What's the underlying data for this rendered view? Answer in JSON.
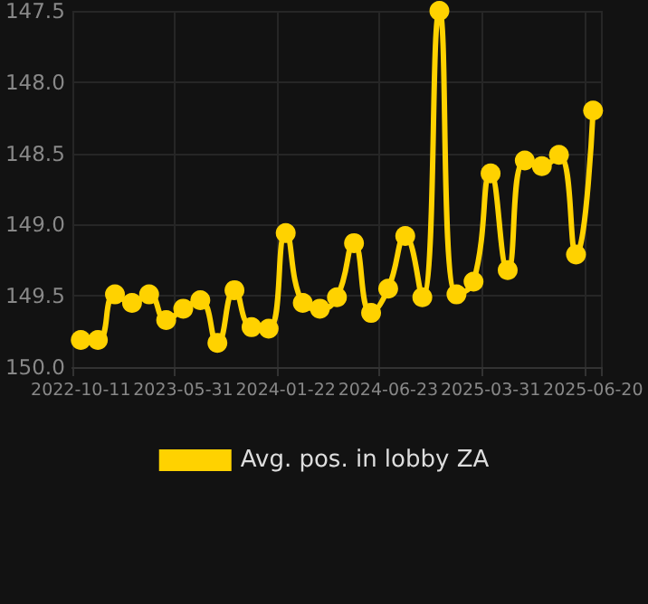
{
  "chart_data": {
    "type": "line",
    "categories": [
      "2022-10-11",
      null,
      null,
      null,
      null,
      null,
      "2023-05-31",
      null,
      null,
      null,
      null,
      null,
      "2024-01-22",
      null,
      null,
      null,
      null,
      null,
      "2024-06-23",
      null,
      null,
      null,
      null,
      null,
      "2025-03-31",
      null,
      null,
      null,
      null,
      null,
      "2025-06-20"
    ],
    "series": [
      {
        "name": "Avg. pos. in lobby ZA",
        "color": "#ffd200",
        "values": [
          149.81,
          149.81,
          149.49,
          149.55,
          149.49,
          149.67,
          149.59,
          149.53,
          149.83,
          149.46,
          149.72,
          149.73,
          149.06,
          149.55,
          149.59,
          149.51,
          149.13,
          149.62,
          149.45,
          149.08,
          149.51,
          147.5,
          149.49,
          149.4,
          148.64,
          149.32,
          148.55,
          148.59,
          148.51,
          149.21,
          148.2
        ]
      }
    ],
    "ylim": [
      150.0,
      147.5
    ],
    "yticks": [
      {
        "value": 147.5,
        "label": "147.5"
      },
      {
        "value": 148.0,
        "label": "148.0"
      },
      {
        "value": 148.5,
        "label": "148.5"
      },
      {
        "value": 149.0,
        "label": "149.0"
      },
      {
        "value": 149.5,
        "label": "149.5"
      },
      {
        "value": 150.0,
        "label": "150.0"
      }
    ],
    "grid": true,
    "legend": "bottom",
    "marker": "circle",
    "line_style": "solid"
  }
}
